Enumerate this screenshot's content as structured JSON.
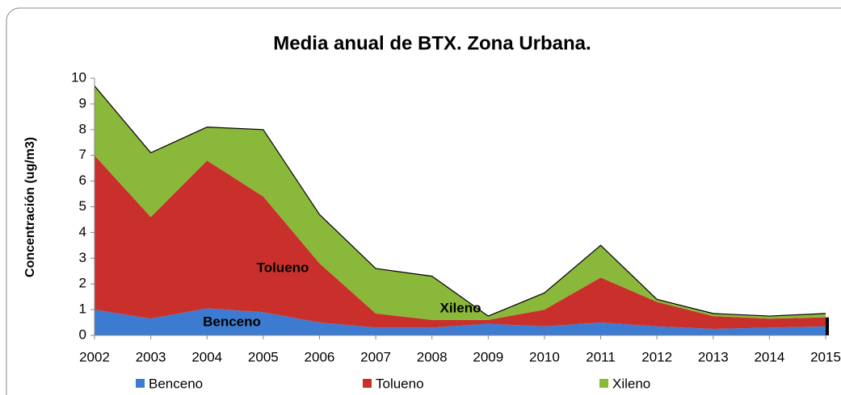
{
  "chart_data": {
    "type": "stacked_area",
    "title": "Media anual de BTX. Zona Urbana.",
    "y_label": "Concentración (ug/m3)",
    "categories": [
      "2002",
      "2003",
      "2004",
      "2005",
      "2006",
      "2007",
      "2008",
      "2009",
      "2010",
      "2011",
      "2012",
      "2013",
      "2014",
      "2015"
    ],
    "series": [
      {
        "name": "Benceno",
        "color": "#3d7bd0",
        "values": [
          1.0,
          0.65,
          1.05,
          0.9,
          0.5,
          0.3,
          0.3,
          0.45,
          0.35,
          0.5,
          0.35,
          0.25,
          0.3,
          0.35
        ]
      },
      {
        "name": "Tolueno",
        "color": "#c9302c",
        "values": [
          6.0,
          3.95,
          5.75,
          4.5,
          2.3,
          0.55,
          0.3,
          0.15,
          0.65,
          1.75,
          0.95,
          0.5,
          0.35,
          0.35
        ]
      },
      {
        "name": "Xileno",
        "color": "#8ab83a",
        "values": [
          2.7,
          2.5,
          1.3,
          2.6,
          1.9,
          1.75,
          1.7,
          0.15,
          0.65,
          1.25,
          0.1,
          0.1,
          0.1,
          0.15
        ]
      }
    ],
    "annotations": [
      "Tolueno",
      "Benceno",
      "Xileno"
    ],
    "ylim": [
      0,
      10
    ],
    "yticks": [
      0,
      1,
      2,
      3,
      4,
      5,
      6,
      7,
      8,
      9,
      10
    ],
    "legend": "bottom"
  }
}
